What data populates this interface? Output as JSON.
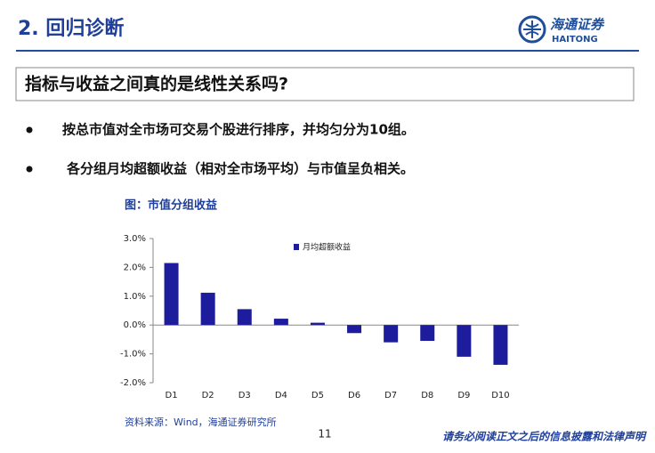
{
  "header": {
    "title": "2. 回归诊断",
    "logo_cn": "海通证券",
    "logo_en": "HAITONG"
  },
  "question": "指标与收益之间真的是线性关系吗?",
  "bullets": [
    "按总市值对全市场可交易个股进行排序，并均匀分为10组。",
    "各分组月均超额收益（相对全市场平均）与市值呈负相关。"
  ],
  "chart_data": {
    "type": "bar",
    "title": "图：市值分组收益",
    "categories": [
      "D1",
      "D2",
      "D3",
      "D4",
      "D5",
      "D6",
      "D7",
      "D8",
      "D9",
      "D10"
    ],
    "series": [
      {
        "name": "月均超额收益",
        "color": "#1c1c9c",
        "values": [
          2.15,
          1.12,
          0.55,
          0.22,
          0.08,
          -0.28,
          -0.6,
          -0.55,
          -1.1,
          -1.38
        ]
      }
    ],
    "ylim": [
      -2,
      3
    ],
    "yticks": [
      {
        "value": -2,
        "label": "-2.0%"
      },
      {
        "value": -1,
        "label": "-1.0%"
      },
      {
        "value": 0,
        "label": "0.0%"
      },
      {
        "value": 1,
        "label": "1.0%"
      },
      {
        "value": 2,
        "label": "2.0%"
      },
      {
        "value": 3,
        "label": "3.0%"
      }
    ],
    "source": "资料来源：Wind，海通证券研究所"
  },
  "page_number": "11",
  "footer": "请务必阅读正文之后的信息披露和法律声明"
}
